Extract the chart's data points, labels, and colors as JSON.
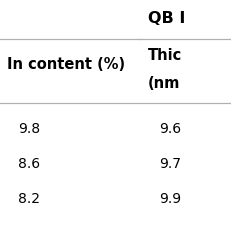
{
  "col1_header": "In content (%)",
  "col2_header_line1": "Thic",
  "col2_header_line2": "(nm",
  "group_header": "QB I",
  "rows": [
    [
      "9.8",
      "9.6"
    ],
    [
      "8.6",
      "9.7"
    ],
    [
      "8.2",
      "9.9"
    ]
  ],
  "background_color": "#ffffff",
  "text_color": "#000000",
  "line_color": "#b0b0b0",
  "font_size": 10,
  "header_font_size": 10.5
}
